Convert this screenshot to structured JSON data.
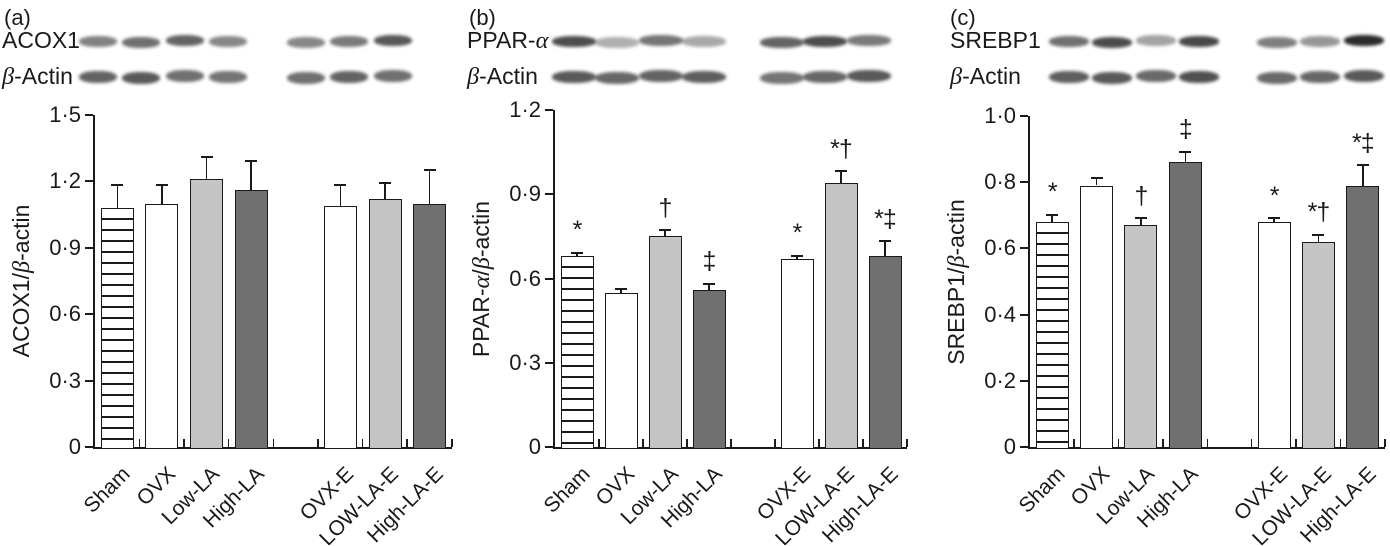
{
  "chart_data": [
    {
      "type": "bar",
      "panel": "(a)",
      "title": "",
      "xlabel": "",
      "ylabel": "ACOX1/β-actin",
      "ylabel_segments": [
        {
          "t": "ACOX1/"
        },
        {
          "t": "β",
          "italic": true
        },
        {
          "t": "-actin"
        }
      ],
      "ylim": [
        0,
        1.5
      ],
      "yticks": [
        {
          "v": 0,
          "label": "0"
        },
        {
          "v": 0.3,
          "label": "0·3"
        },
        {
          "v": 0.6,
          "label": "0·6"
        },
        {
          "v": 0.9,
          "label": "0·9"
        },
        {
          "v": 1.2,
          "label": "1·2"
        },
        {
          "v": 1.5,
          "label": "1·5"
        }
      ],
      "categories": [
        "Sham",
        "OVX",
        "Low-LA",
        "High-LA",
        "OVX-E",
        "LOW-LA-E",
        "High-LA-E"
      ],
      "slots": [
        0,
        1,
        2,
        3,
        5,
        6,
        7
      ],
      "n_slots": 8,
      "grid": false,
      "legend": "none",
      "bars": [
        {
          "category": "Sham",
          "value": 1.08,
          "err": 0.1,
          "style": "hatched",
          "annotation": ""
        },
        {
          "category": "OVX",
          "value": 1.1,
          "err": 0.08,
          "style": "white",
          "annotation": ""
        },
        {
          "category": "Low-LA",
          "value": 1.21,
          "err": 0.1,
          "style": "lightgray",
          "annotation": ""
        },
        {
          "category": "High-LA",
          "value": 1.16,
          "err": 0.13,
          "style": "darkgray",
          "annotation": ""
        },
        {
          "category": "OVX-E",
          "value": 1.09,
          "err": 0.09,
          "style": "white",
          "annotation": ""
        },
        {
          "category": "LOW-LA-E",
          "value": 1.12,
          "err": 0.07,
          "style": "lightgray",
          "annotation": ""
        },
        {
          "category": "High-LA-E",
          "value": 1.1,
          "err": 0.15,
          "style": "darkgray",
          "annotation": ""
        }
      ]
    },
    {
      "type": "bar",
      "panel": "(b)",
      "title": "",
      "xlabel": "",
      "ylabel": "PPAR-α/β-actin",
      "ylabel_segments": [
        {
          "t": "PPAR-"
        },
        {
          "t": "α",
          "italic": true
        },
        {
          "t": "/"
        },
        {
          "t": "β",
          "italic": true
        },
        {
          "t": "-actin"
        }
      ],
      "ylim": [
        0,
        1.2
      ],
      "yticks": [
        {
          "v": 0,
          "label": "0"
        },
        {
          "v": 0.3,
          "label": "0·3"
        },
        {
          "v": 0.6,
          "label": "0·6"
        },
        {
          "v": 0.9,
          "label": "0·9"
        },
        {
          "v": 1.2,
          "label": "1·2"
        }
      ],
      "categories": [
        "Sham",
        "OVX",
        "Low-LA",
        "High-LA",
        "OVX-E",
        "LOW-LA-E",
        "High-LA-E"
      ],
      "slots": [
        0,
        1,
        2,
        3,
        5,
        6,
        7
      ],
      "n_slots": 8,
      "grid": false,
      "legend": "none",
      "bars": [
        {
          "category": "Sham",
          "value": 0.68,
          "err": 0.01,
          "style": "hatched",
          "annotation": "*"
        },
        {
          "category": "OVX",
          "value": 0.55,
          "err": 0.01,
          "style": "white",
          "annotation": ""
        },
        {
          "category": "Low-LA",
          "value": 0.75,
          "err": 0.02,
          "style": "lightgray",
          "annotation": "†"
        },
        {
          "category": "High-LA",
          "value": 0.56,
          "err": 0.02,
          "style": "darkgray",
          "annotation": "‡"
        },
        {
          "category": "OVX-E",
          "value": 0.67,
          "err": 0.01,
          "style": "white",
          "annotation": "*"
        },
        {
          "category": "LOW-LA-E",
          "value": 0.94,
          "err": 0.04,
          "style": "lightgray",
          "annotation": "*†"
        },
        {
          "category": "High-LA-E",
          "value": 0.68,
          "err": 0.05,
          "style": "darkgray",
          "annotation": "*‡"
        }
      ]
    },
    {
      "type": "bar",
      "panel": "(c)",
      "title": "",
      "xlabel": "",
      "ylabel": "SREBP1/β-actin",
      "ylabel_segments": [
        {
          "t": "SREBP1/"
        },
        {
          "t": "β",
          "italic": true
        },
        {
          "t": "-actin"
        }
      ],
      "ylim": [
        0,
        1.0
      ],
      "yticks": [
        {
          "v": 0,
          "label": "0"
        },
        {
          "v": 0.2,
          "label": "0·2"
        },
        {
          "v": 0.4,
          "label": "0·4"
        },
        {
          "v": 0.6,
          "label": "0·6"
        },
        {
          "v": 0.8,
          "label": "0·8"
        },
        {
          "v": 1.0,
          "label": "1·0"
        }
      ],
      "categories": [
        "Sham",
        "OVX",
        "Low-LA",
        "High-LA",
        "OVX-E",
        "LOW-LA-E",
        "High-LA-E"
      ],
      "slots": [
        0,
        1,
        2,
        3,
        5,
        6,
        7
      ],
      "n_slots": 8,
      "grid": false,
      "legend": "none",
      "bars": [
        {
          "category": "Sham",
          "value": 0.68,
          "err": 0.02,
          "style": "hatched",
          "annotation": "*"
        },
        {
          "category": "OVX",
          "value": 0.79,
          "err": 0.02,
          "style": "white",
          "annotation": ""
        },
        {
          "category": "Low-LA",
          "value": 0.67,
          "err": 0.02,
          "style": "lightgray",
          "annotation": "†"
        },
        {
          "category": "High-LA",
          "value": 0.86,
          "err": 0.03,
          "style": "darkgray",
          "annotation": "‡"
        },
        {
          "category": "OVX-E",
          "value": 0.68,
          "err": 0.01,
          "style": "white",
          "annotation": "*"
        },
        {
          "category": "LOW-LA-E",
          "value": 0.62,
          "err": 0.02,
          "style": "lightgray",
          "annotation": "*†"
        },
        {
          "category": "High-LA-E",
          "value": 0.79,
          "err": 0.06,
          "style": "darkgray",
          "annotation": "*‡"
        }
      ]
    }
  ],
  "blots": [
    {
      "panel": "(a)",
      "rows": [
        {
          "label": "ACOX1",
          "label_segments": [
            {
              "t": "ACOX1"
            }
          ],
          "bands": [
            0.55,
            0.62,
            0.68,
            0.52,
            0.52,
            0.58,
            0.72
          ]
        },
        {
          "label": "β-Actin",
          "label_segments": [
            {
              "t": "β",
              "italic": true
            },
            {
              "t": "-Actin"
            }
          ],
          "bands": [
            0.68,
            0.72,
            0.62,
            0.6,
            0.62,
            0.68,
            0.62
          ]
        }
      ]
    },
    {
      "panel": "(b)",
      "rows": [
        {
          "label": "PPAR-α",
          "label_segments": [
            {
              "t": "PPAR-"
            },
            {
              "t": "α",
              "italic": true
            }
          ],
          "bands": [
            0.78,
            0.35,
            0.6,
            0.38,
            0.68,
            0.78,
            0.58
          ]
        },
        {
          "label": "β-Actin",
          "label_segments": [
            {
              "t": "β",
              "italic": true
            },
            {
              "t": "-Actin"
            }
          ],
          "bands": [
            0.72,
            0.66,
            0.68,
            0.7,
            0.6,
            0.66,
            0.72
          ]
        }
      ]
    },
    {
      "panel": "(c)",
      "rows": [
        {
          "label": "SREBP1",
          "label_segments": [
            {
              "t": "SREBP1"
            }
          ],
          "bands": [
            0.62,
            0.78,
            0.4,
            0.8,
            0.56,
            0.45,
            0.92
          ]
        },
        {
          "label": "β-Actin",
          "label_segments": [
            {
              "t": "β",
              "italic": true
            },
            {
              "t": "-Actin"
            }
          ],
          "bands": [
            0.7,
            0.72,
            0.65,
            0.76,
            0.65,
            0.66,
            0.72
          ]
        }
      ]
    }
  ],
  "bar_styles": {
    "hatched": {
      "fill": "hatched-stripes",
      "stripe_color": "#1a1a1a"
    },
    "white": {
      "fill": "#ffffff"
    },
    "lightgray": {
      "fill": "#c5c5c5"
    },
    "darkgray": {
      "fill": "#707070"
    }
  },
  "ink_color": "#1a1a1a",
  "background_color": "#ffffff"
}
